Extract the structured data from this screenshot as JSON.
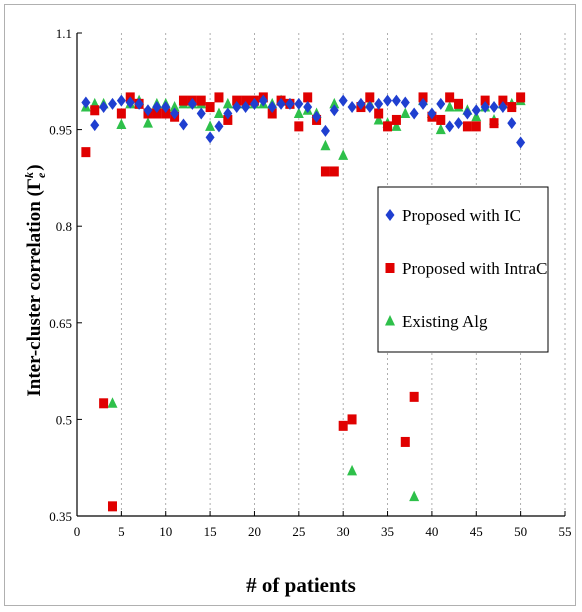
{
  "chart_data": {
    "type": "scatter",
    "title": "",
    "xlabel": "# of patients",
    "ylabel": "Inter-cluster correlation",
    "ylabel_symbol": "(Γ",
    "ylabel_sup": "k",
    "ylabel_sub": "e",
    "ylabel_close": ")",
    "xlim": [
      0,
      55
    ],
    "ylim": [
      0.35,
      1.1
    ],
    "xticks": [
      0,
      5,
      10,
      15,
      20,
      25,
      30,
      35,
      40,
      45,
      50,
      55
    ],
    "yticks": [
      0.35,
      0.5,
      0.65,
      0.8,
      0.95,
      1.1
    ],
    "ytick_labels": [
      "0.35",
      "0.5",
      "0.65",
      "0.8",
      "0.95",
      "1.1"
    ],
    "grid": "vertical-dashed",
    "legend_position": "right-middle",
    "series": [
      {
        "name": "Proposed with IC",
        "marker": "diamond",
        "color": "#1f3fd0",
        "x": [
          1,
          2,
          3,
          4,
          5,
          6,
          7,
          8,
          9,
          10,
          11,
          12,
          13,
          14,
          15,
          16,
          17,
          18,
          19,
          20,
          21,
          22,
          23,
          24,
          25,
          26,
          27,
          28,
          29,
          30,
          31,
          32,
          33,
          34,
          35,
          36,
          37,
          38,
          39,
          40,
          41,
          42,
          43,
          44,
          45,
          46,
          47,
          48,
          49,
          50
        ],
        "y": [
          0.992,
          0.957,
          0.985,
          0.99,
          0.995,
          0.992,
          0.99,
          0.98,
          0.985,
          0.985,
          0.975,
          0.958,
          0.99,
          0.975,
          0.938,
          0.955,
          0.975,
          0.985,
          0.985,
          0.99,
          0.995,
          0.985,
          0.99,
          0.99,
          0.99,
          0.985,
          0.97,
          0.948,
          0.98,
          0.995,
          0.985,
          0.99,
          0.985,
          0.99,
          0.995,
          0.995,
          0.992,
          0.975,
          0.99,
          0.975,
          0.99,
          0.955,
          0.96,
          0.975,
          0.98,
          0.985,
          0.985,
          0.985,
          0.96,
          0.93
        ]
      },
      {
        "name": "Proposed with IntraC",
        "marker": "square",
        "color": "#e00000",
        "x": [
          1,
          2,
          3,
          4,
          5,
          6,
          7,
          8,
          9,
          10,
          11,
          12,
          13,
          14,
          15,
          16,
          17,
          18,
          19,
          20,
          21,
          22,
          23,
          24,
          25,
          26,
          27,
          28,
          29,
          30,
          31,
          32,
          33,
          34,
          35,
          36,
          37,
          38,
          39,
          40,
          41,
          42,
          43,
          44,
          45,
          46,
          47,
          48,
          49,
          50
        ],
        "y": [
          0.915,
          0.98,
          0.525,
          0.365,
          0.975,
          1.0,
          0.99,
          0.975,
          0.975,
          0.975,
          0.97,
          0.995,
          0.995,
          0.995,
          0.985,
          1.0,
          0.965,
          0.995,
          0.995,
          0.995,
          1.0,
          0.975,
          0.995,
          0.99,
          0.955,
          1.0,
          0.965,
          0.885,
          0.885,
          0.49,
          0.5,
          0.985,
          1.0,
          0.975,
          0.955,
          0.965,
          0.465,
          0.535,
          1.0,
          0.97,
          0.965,
          1.0,
          0.99,
          0.955,
          0.955,
          0.995,
          0.96,
          0.995,
          0.985,
          1.0
        ]
      },
      {
        "name": "Existing Alg",
        "marker": "triangle",
        "color": "#2ec04a",
        "x": [
          1,
          2,
          3,
          4,
          5,
          6,
          7,
          8,
          9,
          10,
          11,
          12,
          13,
          14,
          15,
          16,
          17,
          18,
          19,
          20,
          21,
          22,
          23,
          24,
          25,
          26,
          27,
          28,
          29,
          30,
          31,
          32,
          33,
          34,
          35,
          36,
          37,
          38,
          39,
          40,
          41,
          42,
          43,
          44,
          45,
          46,
          47,
          48,
          49,
          50
        ],
        "y": [
          0.985,
          0.99,
          0.99,
          0.525,
          0.958,
          0.99,
          0.995,
          0.96,
          0.99,
          0.99,
          0.985,
          0.99,
          0.99,
          0.99,
          0.955,
          0.975,
          0.99,
          0.99,
          0.99,
          0.99,
          0.99,
          0.99,
          0.995,
          0.99,
          0.975,
          0.98,
          0.975,
          0.925,
          0.99,
          0.91,
          0.42,
          0.99,
          0.99,
          0.965,
          0.96,
          0.955,
          0.975,
          0.38,
          0.995,
          0.975,
          0.95,
          0.985,
          0.985,
          0.98,
          0.97,
          0.985,
          0.965,
          0.99,
          0.99,
          0.995
        ]
      }
    ]
  }
}
